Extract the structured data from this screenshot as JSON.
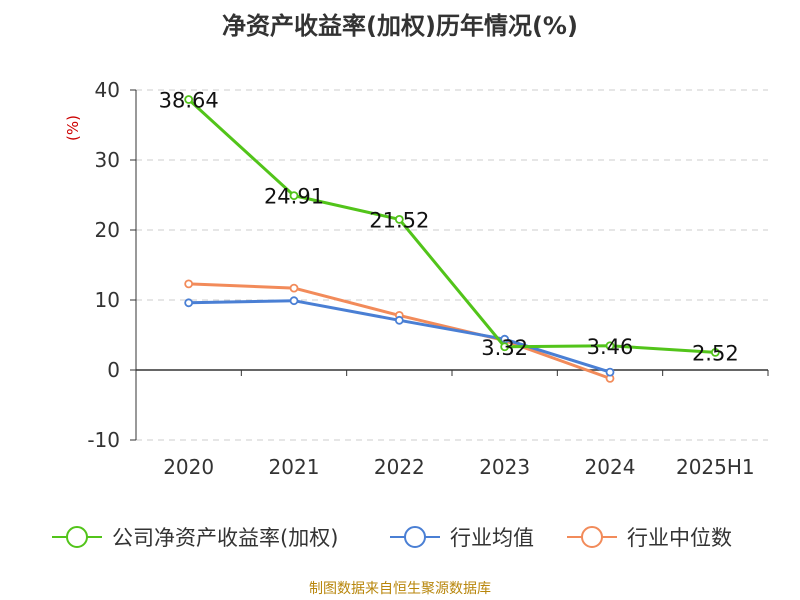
{
  "title": "净资产收益率(加权)历年情况(%)",
  "footer": "制图数据来自恒生聚源数据库",
  "colors": {
    "footer": "#b8860b",
    "axis_unit": "#cc0000"
  },
  "chart_data": {
    "type": "line",
    "title": "净资产收益率(加权)历年情况(%)",
    "ylabel": "(%)",
    "xlabel": "",
    "categories": [
      "2020",
      "2021",
      "2022",
      "2023",
      "2024",
      "2025H1"
    ],
    "ylim": [
      -10,
      40
    ],
    "yticks": [
      40,
      30,
      20,
      10,
      0,
      -10
    ],
    "grid": true,
    "legend_position": "bottom",
    "series": [
      {
        "name": "公司净资产收益率(加权)",
        "color": "#52c41a",
        "values": [
          38.64,
          24.91,
          21.52,
          3.32,
          3.46,
          2.52
        ],
        "labels": [
          "38.64",
          "24.91",
          "21.52",
          "3.32",
          "3.46",
          "2.52"
        ]
      },
      {
        "name": "行业均值",
        "color": "#4a7fd4",
        "values": [
          9.6,
          9.9,
          7.1,
          4.4,
          -0.3,
          null
        ]
      },
      {
        "name": "行业中位数",
        "color": "#f28b5a",
        "values": [
          12.3,
          11.7,
          7.8,
          4.2,
          -1.2,
          null
        ]
      }
    ]
  }
}
